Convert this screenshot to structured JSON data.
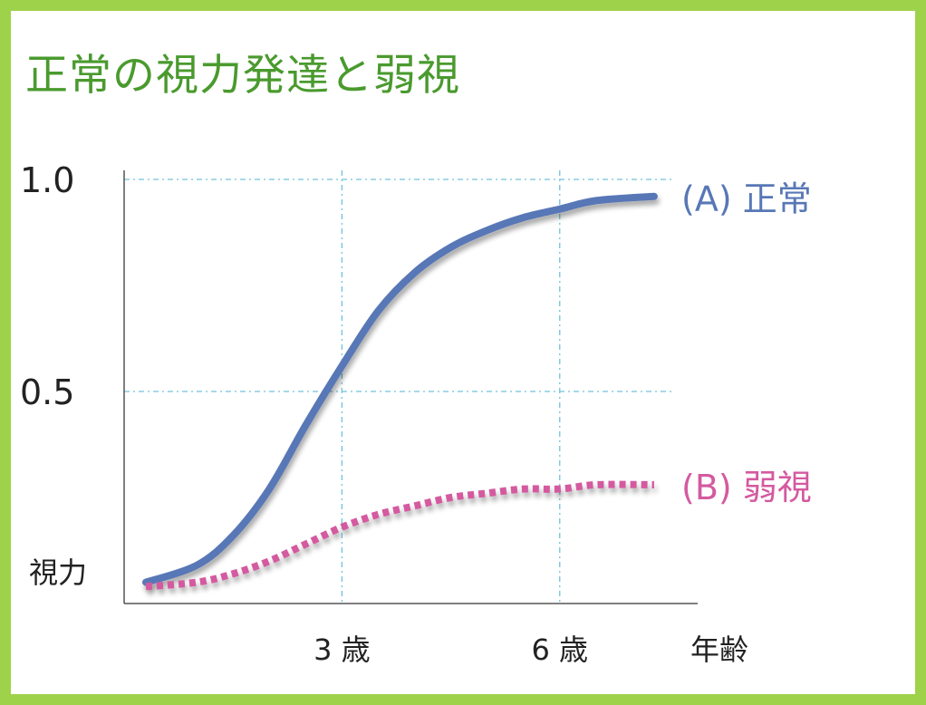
{
  "title": "正常の視力発達と弱視",
  "chart_data": {
    "type": "line",
    "title": "正常の視力発達と弱視",
    "ylabel": "視力",
    "xlabel": "年齢",
    "ylim": [
      0,
      1.0
    ],
    "xlim": [
      0,
      7.9
    ],
    "y_ticks": [
      {
        "value": 1.0,
        "label": "1.0"
      },
      {
        "value": 0.5,
        "label": "0.5"
      }
    ],
    "x_ticks": [
      {
        "value": 3,
        "label": "3 歳"
      },
      {
        "value": 6,
        "label": "6 歳"
      }
    ],
    "grid": true,
    "series": [
      {
        "name": "(A) 正常",
        "color": "#5877b6",
        "style": "solid",
        "x": [
          0.3,
          1.0,
          1.5,
          2.0,
          2.5,
          3.0,
          3.5,
          4.0,
          4.5,
          5.0,
          5.5,
          6.0,
          6.5,
          7.3
        ],
        "y": [
          0.05,
          0.09,
          0.16,
          0.27,
          0.42,
          0.56,
          0.69,
          0.78,
          0.84,
          0.88,
          0.91,
          0.93,
          0.95,
          0.96
        ]
      },
      {
        "name": "(B) 弱視",
        "color": "#d45aa0",
        "style": "dotted",
        "x": [
          0.3,
          1.0,
          1.5,
          2.0,
          2.5,
          3.0,
          3.5,
          4.0,
          4.5,
          5.0,
          5.5,
          6.0,
          6.5,
          7.3
        ],
        "y": [
          0.04,
          0.05,
          0.07,
          0.1,
          0.14,
          0.18,
          0.21,
          0.23,
          0.25,
          0.26,
          0.27,
          0.27,
          0.28,
          0.28
        ]
      }
    ]
  }
}
